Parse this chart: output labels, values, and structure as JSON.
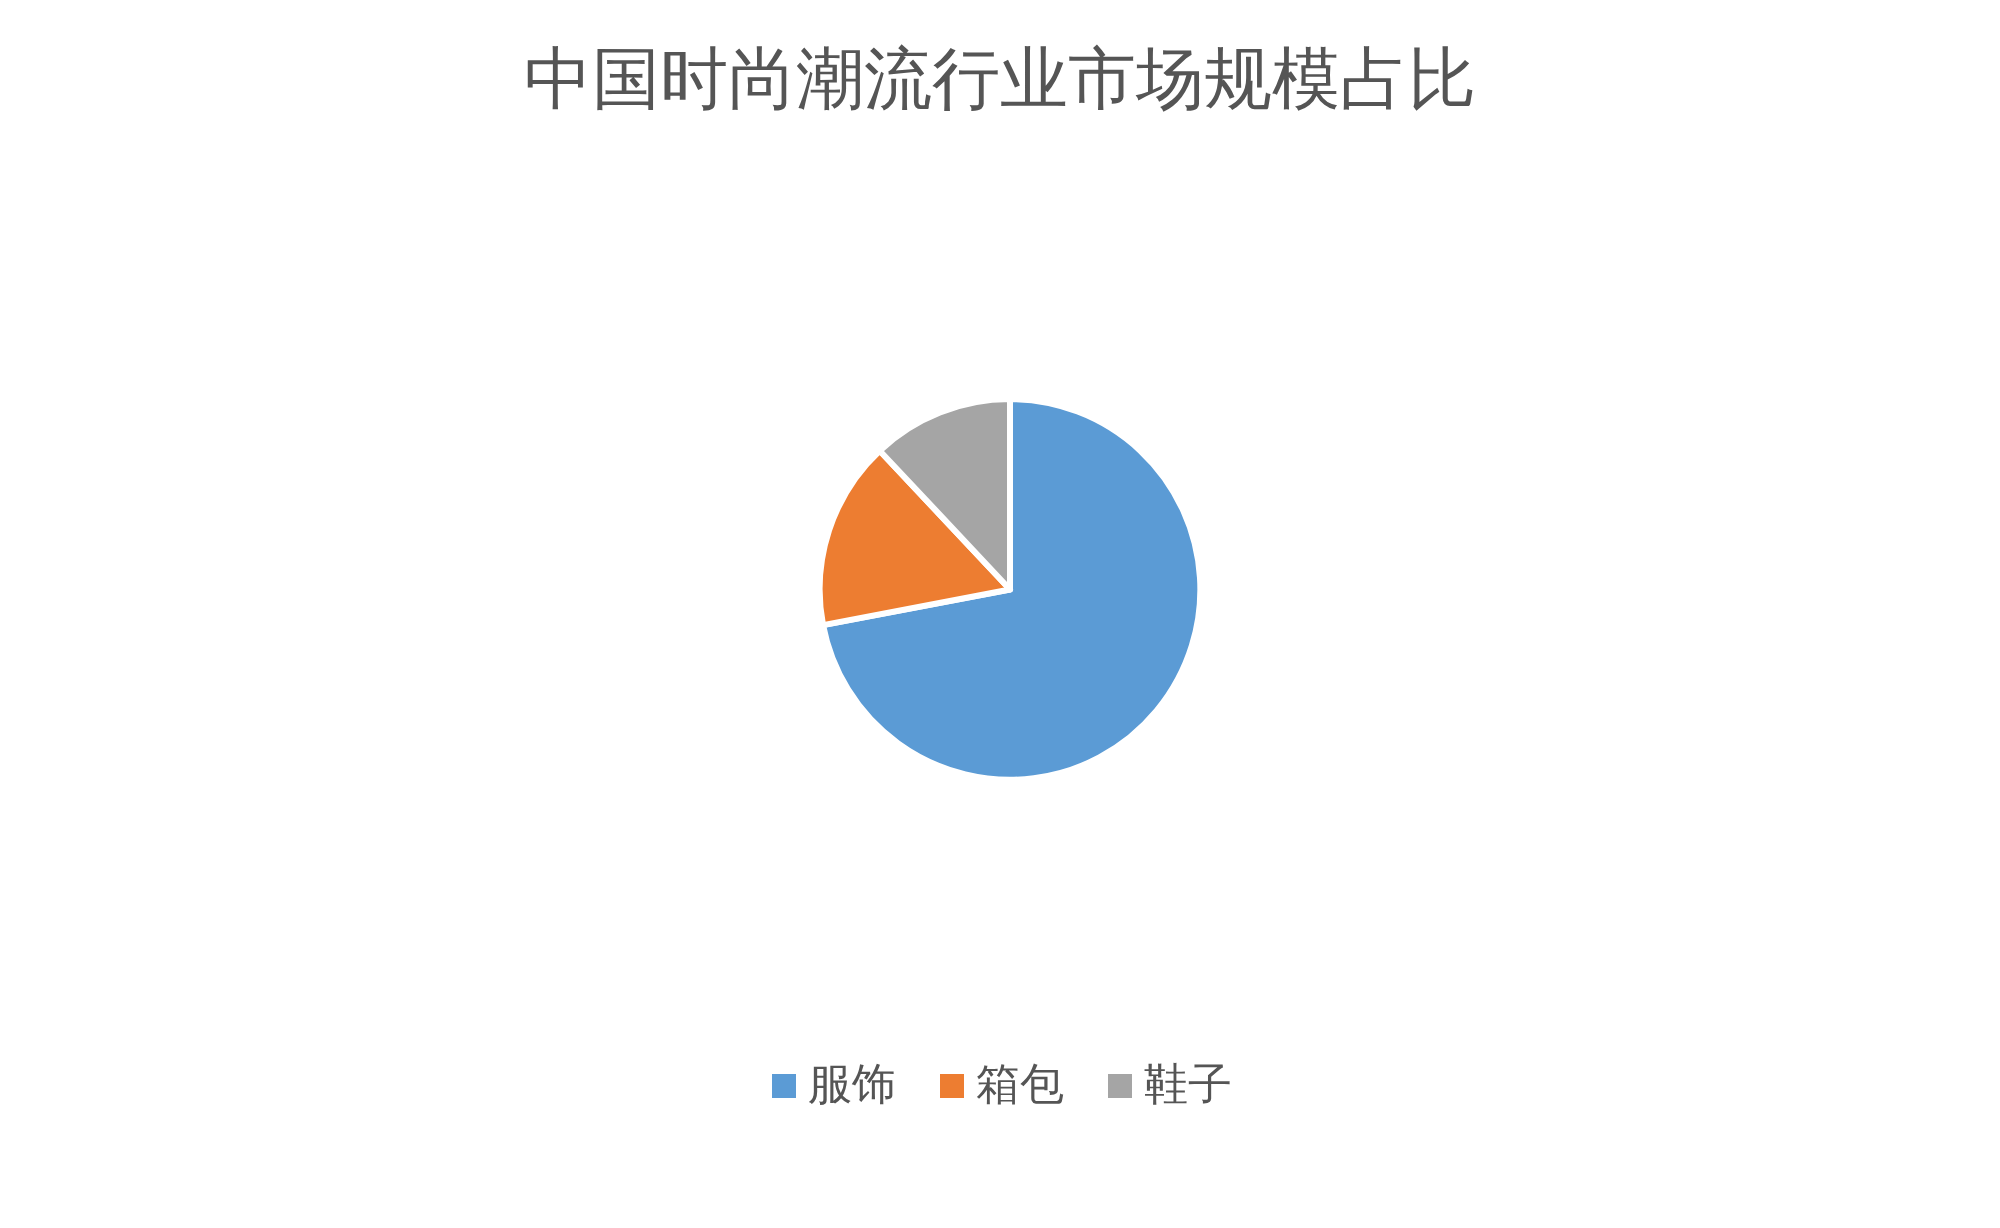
{
  "chart_data": {
    "type": "pie",
    "title": "中国时尚潮流行业市场规模占比",
    "categories": [
      "服饰",
      "箱包",
      "鞋子"
    ],
    "values": [
      72,
      16,
      12
    ],
    "colors": [
      "#5b9bd5",
      "#ed7d31",
      "#a5a5a5"
    ],
    "legend": "bottom"
  }
}
